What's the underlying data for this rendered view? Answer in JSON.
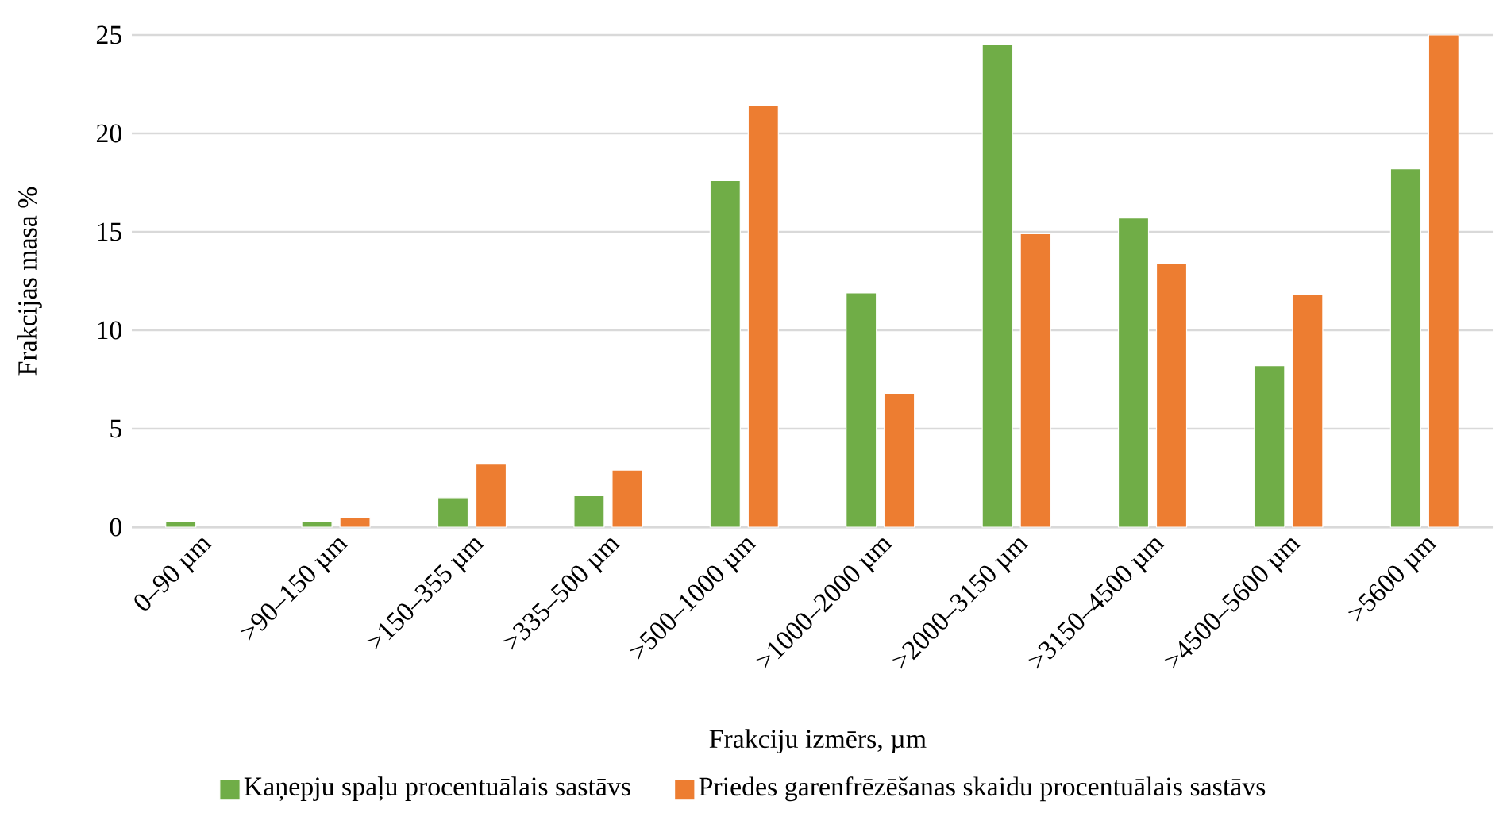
{
  "chart_data": {
    "type": "bar",
    "xlabel": "Frakciju izmērs, µm",
    "ylabel": "Frakcijas masa %",
    "categories": [
      "0–90 µm",
      ">90–150 µm",
      ">150–355 µm",
      ">335–500 µm",
      ">500–1000 µm",
      ">1000–2000 µm",
      ">2000–3150 µm",
      ">3150–4500 µm",
      ">4500–5600 µm",
      ">5600 µm"
    ],
    "series": [
      {
        "name": "Kaņepju spaļu procentuālais sastāvs",
        "color": "#70ad47",
        "values": [
          0.3,
          0.3,
          1.5,
          1.6,
          17.6,
          11.9,
          24.5,
          15.7,
          8.2,
          18.2
        ]
      },
      {
        "name": "Priedes garenfrēzēšanas skaidu procentuālais sastāvs",
        "color": "#ed7d31",
        "values": [
          null,
          0.5,
          3.2,
          2.9,
          21.4,
          6.8,
          14.9,
          13.4,
          11.8,
          25
        ]
      }
    ],
    "ylim": [
      0,
      25
    ],
    "yticks": [
      0,
      5,
      10,
      15,
      20,
      25
    ],
    "grid": "y",
    "legend": "bottom"
  }
}
